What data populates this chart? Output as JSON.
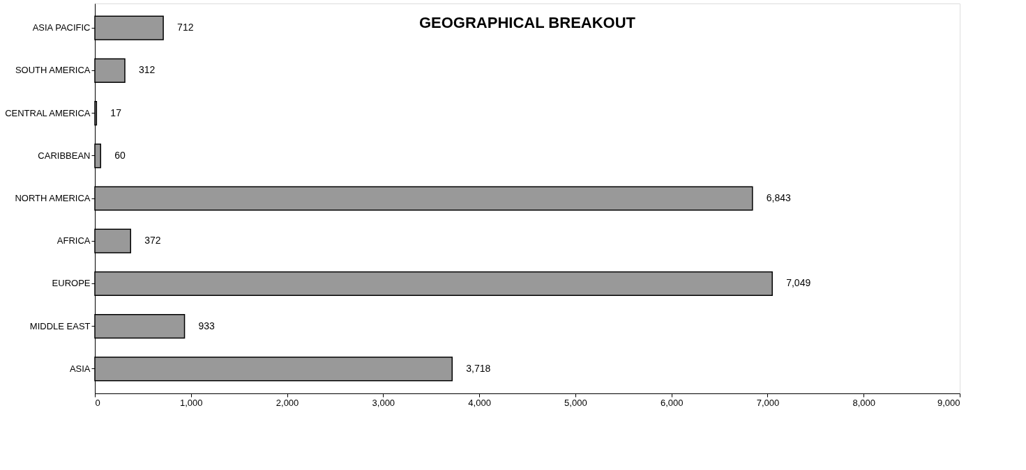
{
  "chart_data": {
    "type": "bar",
    "orientation": "horizontal",
    "title": "GEOGRAPHICAL BREAKOUT",
    "categories": [
      "ASIA PACIFIC",
      "SOUTH AMERICA",
      "CENTRAL AMERICA",
      "CARIBBEAN",
      "NORTH AMERICA",
      "AFRICA",
      "EUROPE",
      "MIDDLE EAST",
      "ASIA"
    ],
    "values": [
      712,
      312,
      17,
      60,
      6843,
      372,
      7049,
      933,
      3718
    ],
    "value_labels": [
      "712",
      "312",
      "17",
      "60",
      "6,843",
      "372",
      "7,049",
      "933",
      "3,718"
    ],
    "color": "#999999",
    "xlim": [
      0,
      9000
    ],
    "xticks": [
      0,
      {
        "value": 1000,
        "label": "1,000"
      },
      {
        "value": 2000,
        "label": "2,000"
      },
      {
        "value": 3000,
        "label": "3,000"
      },
      {
        "value": 4000,
        "label": "4,000"
      },
      {
        "value": 5000,
        "label": "5,000"
      },
      {
        "value": 6000,
        "label": "6,000"
      },
      {
        "value": 7000,
        "label": "7,000"
      },
      {
        "value": 8000,
        "label": "8,000"
      },
      {
        "value": 9000,
        "label": "9,000"
      }
    ],
    "grid": false
  }
}
